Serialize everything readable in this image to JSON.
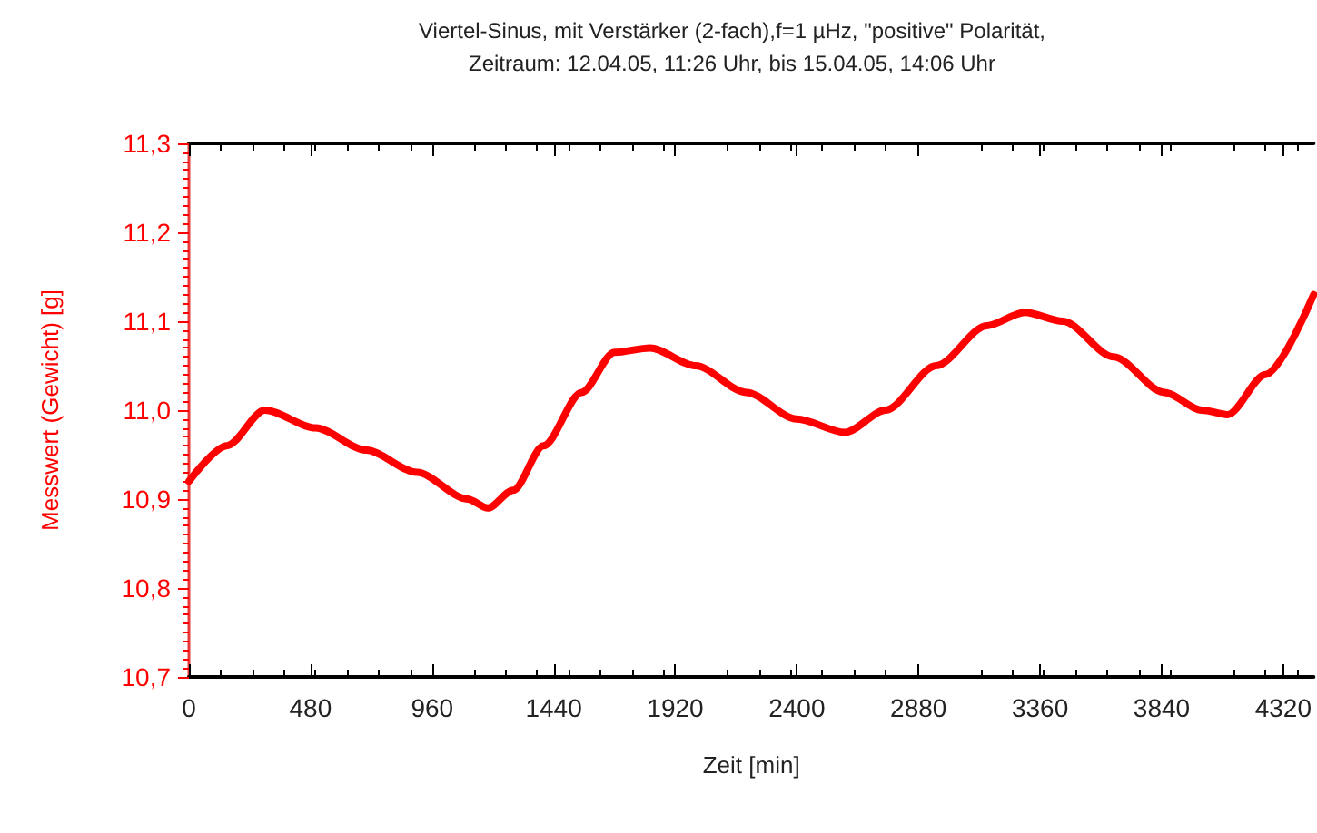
{
  "chart_data": {
    "type": "line",
    "title": "Viertel-Sinus, mit Verstärker (2-fach),f=1 µHz, \"positive\" Polarität,",
    "subtitle": "Zeitraum: 12.04.05, 11:26 Uhr, bis 15.04.05, 14:06 Uhr",
    "xlabel": "Zeit [min]",
    "ylabel": "Messwert (Gewicht) [g]",
    "x": [
      0,
      150,
      300,
      500,
      700,
      900,
      1100,
      1180,
      1280,
      1400,
      1550,
      1680,
      1820,
      2000,
      2200,
      2400,
      2590,
      2750,
      2950,
      3150,
      3300,
      3450,
      3650,
      3850,
      4000,
      4100,
      4250,
      4440
    ],
    "series": [
      {
        "color": "#ff0000",
        "values": [
          10.92,
          10.96,
          11.0,
          10.98,
          10.955,
          10.93,
          10.9,
          10.89,
          10.91,
          10.96,
          11.02,
          11.065,
          11.07,
          11.05,
          11.02,
          10.99,
          10.975,
          11.0,
          11.05,
          11.095,
          11.11,
          11.1,
          11.06,
          11.02,
          11.0,
          10.995,
          11.04,
          11.13
        ]
      }
    ],
    "xlim": [
      0,
      4440
    ],
    "xticks": [
      0,
      480,
      960,
      1440,
      1920,
      2400,
      2880,
      3360,
      3840,
      4320
    ],
    "ylim": [
      10.7,
      11.3
    ],
    "yticks": [
      {
        "value": 10.7,
        "label": "10,7"
      },
      {
        "value": 10.8,
        "label": "10,8"
      },
      {
        "value": 10.9,
        "label": "10,9"
      },
      {
        "value": 11.0,
        "label": "11,0"
      },
      {
        "value": 11.1,
        "label": "11,1"
      },
      {
        "value": 11.2,
        "label": "11,2"
      },
      {
        "value": 11.3,
        "label": "11,3"
      }
    ],
    "grid": false,
    "marker": "none",
    "line_style": "solid"
  }
}
